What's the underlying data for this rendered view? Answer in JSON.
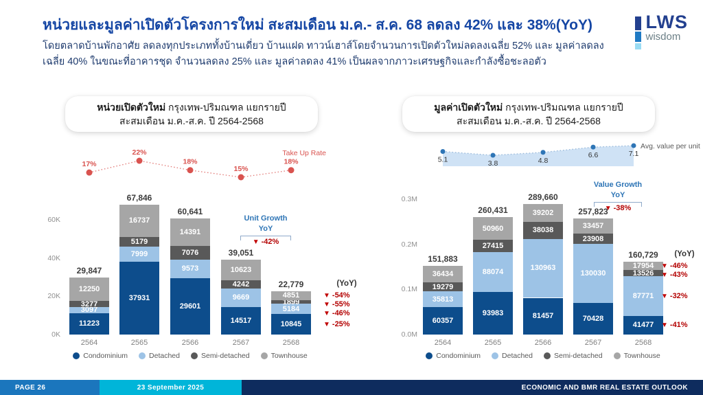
{
  "header": {
    "title": "หน่วยและมูลค่าเปิดตัวโครงการใหม่ สะสมเดือน ม.ค.- ส.ค. 68 ลดลง 42% และ 38%(YoY)",
    "subtitle_line1": "โดยตลาดบ้านพักอาศัย ลดลงทุกประเภททั้งบ้านเดี่ยว บ้านแฝด ทาวน์เฮาส์โดยจำนวนการเปิดตัวใหม่ลดลงเฉลี่ย 52% และ มูลค่าลดลง",
    "subtitle_line2": "เฉลี่ย 40%  ในขณะที่อาคารชุด จำนวนลดลง 25% และ มูลค่าลดลง 41% เป็นผลจากภาวะเศรษฐกิจและกำลังซื้อชะลอตัว",
    "logo": {
      "text": "LWS",
      "sub": "wisdom"
    }
  },
  "footer": {
    "page": "PAGE 26",
    "date": "23 September 2025",
    "right": "ECONOMIC AND BMR REAL ESTATE OUTLOOK"
  },
  "colors": {
    "title_blue": "#1546a4",
    "condominium": "#0d4d8c",
    "detached": "#9dc3e6",
    "semi_detached": "#595959",
    "townhouse": "#a6a6a6",
    "takeup_red": "#d9534f",
    "yoy_red": "#b30000",
    "growth_blue": "#2e75b6",
    "avg_line_blue": "#2e75b6",
    "avg_area_fill": "#cfe2f5",
    "footer_blue": "#1b76bd",
    "footer_cyan": "#00b5d9",
    "footer_navy": "#0e2c5e",
    "logo_navy": "#23408f",
    "logo_mid_blue": "#1f7ac4",
    "logo_light_blue": "#9adcf4"
  },
  "chart_data": [
    {
      "type": "bar",
      "id": "units",
      "title_bold": "หน่วยเปิดตัวใหม่",
      "title_rest": " กรุงเทพ-ปริมณฑล แยกรายปี",
      "title_line2": "สะสมเดือน ม.ค.-ส.ค. ปี 2564-2568",
      "categories": [
        "2564",
        "2565",
        "2566",
        "2567",
        "2568"
      ],
      "series": [
        {
          "name": "Condominium",
          "color": "#0d4d8c",
          "values": [
            11223,
            37931,
            29601,
            14517,
            10845
          ]
        },
        {
          "name": "Detached",
          "color": "#9dc3e6",
          "values": [
            3097,
            7999,
            9573,
            9669,
            5184
          ]
        },
        {
          "name": "Semi-detached",
          "color": "#595959",
          "values": [
            3277,
            5179,
            7076,
            4242,
            1899
          ]
        },
        {
          "name": "Townhouse",
          "color": "#a6a6a6",
          "values": [
            12250,
            16737,
            14391,
            10623,
            4851
          ]
        }
      ],
      "totals": [
        "29,847",
        "67,846",
        "60,641",
        "39,051",
        "22,779"
      ],
      "y_tick_labels": [
        "0K",
        "20K",
        "40K",
        "60K"
      ],
      "y_tick_values": [
        0,
        20000,
        40000,
        60000
      ],
      "ylim": [
        0,
        70000
      ],
      "line": {
        "label": "Take Up Rate",
        "labels": [
          "17%",
          "22%",
          "18%",
          "15%",
          "18%"
        ],
        "numeric": [
          17,
          22,
          18,
          15,
          18
        ],
        "color": "#d9534f",
        "style": "dotted",
        "area": false
      },
      "growth": {
        "label1": "Unit Growth",
        "label2": "YoY",
        "value": "-42%"
      },
      "yoy_header": "(YoY)",
      "yoy_top_to_bottom": [
        "-54%",
        "-55%",
        "-46%",
        "-25%"
      ]
    },
    {
      "type": "bar",
      "id": "value",
      "title_bold": "มูลค่าเปิดตัวใหม่",
      "title_rest": " กรุงเทพ-ปริมณฑล แยกรายปี",
      "title_line2": "สะสมเดือน ม.ค.-ส.ค. ปี 2564-2568",
      "categories": [
        "2564",
        "2565",
        "2566",
        "2567",
        "2568"
      ],
      "series": [
        {
          "name": "Condominium",
          "color": "#0d4d8c",
          "values": [
            60357,
            93983,
            81457,
            70428,
            41477
          ]
        },
        {
          "name": "Detached",
          "color": "#9dc3e6",
          "values": [
            35813,
            88074,
            130963,
            130030,
            87771
          ]
        },
        {
          "name": "Semi-detached",
          "color": "#595959",
          "values": [
            19279,
            27415,
            38038,
            23908,
            13526
          ]
        },
        {
          "name": "Townhouse",
          "color": "#a6a6a6",
          "values": [
            36434,
            50960,
            39202,
            33457,
            17954
          ]
        }
      ],
      "totals": [
        "151,883",
        "260,431",
        "289,660",
        "257,823",
        "160,729"
      ],
      "y_tick_labels": [
        "0.0M",
        "0.1M",
        "0.2M",
        "0.3M"
      ],
      "y_tick_values": [
        0,
        100000,
        200000,
        300000
      ],
      "ylim": [
        0,
        300000
      ],
      "line": {
        "label": "Avg. value per unit",
        "labels": [
          "5.1",
          "3.8",
          "4.8",
          "6.6",
          "7.1"
        ],
        "numeric": [
          5.1,
          3.8,
          4.8,
          6.6,
          7.1
        ],
        "color": "#2e75b6",
        "style": "dotted",
        "area": true
      },
      "growth": {
        "label1": "Value Growth",
        "label2": "YoY",
        "value": "-38%"
      },
      "yoy_header": "(YoY)",
      "yoy_top_to_bottom": [
        "-46%",
        "-43%",
        "-32%",
        "-41%"
      ]
    }
  ],
  "legend": [
    "Condominium",
    "Detached",
    "Semi-detached",
    "Townhouse"
  ]
}
